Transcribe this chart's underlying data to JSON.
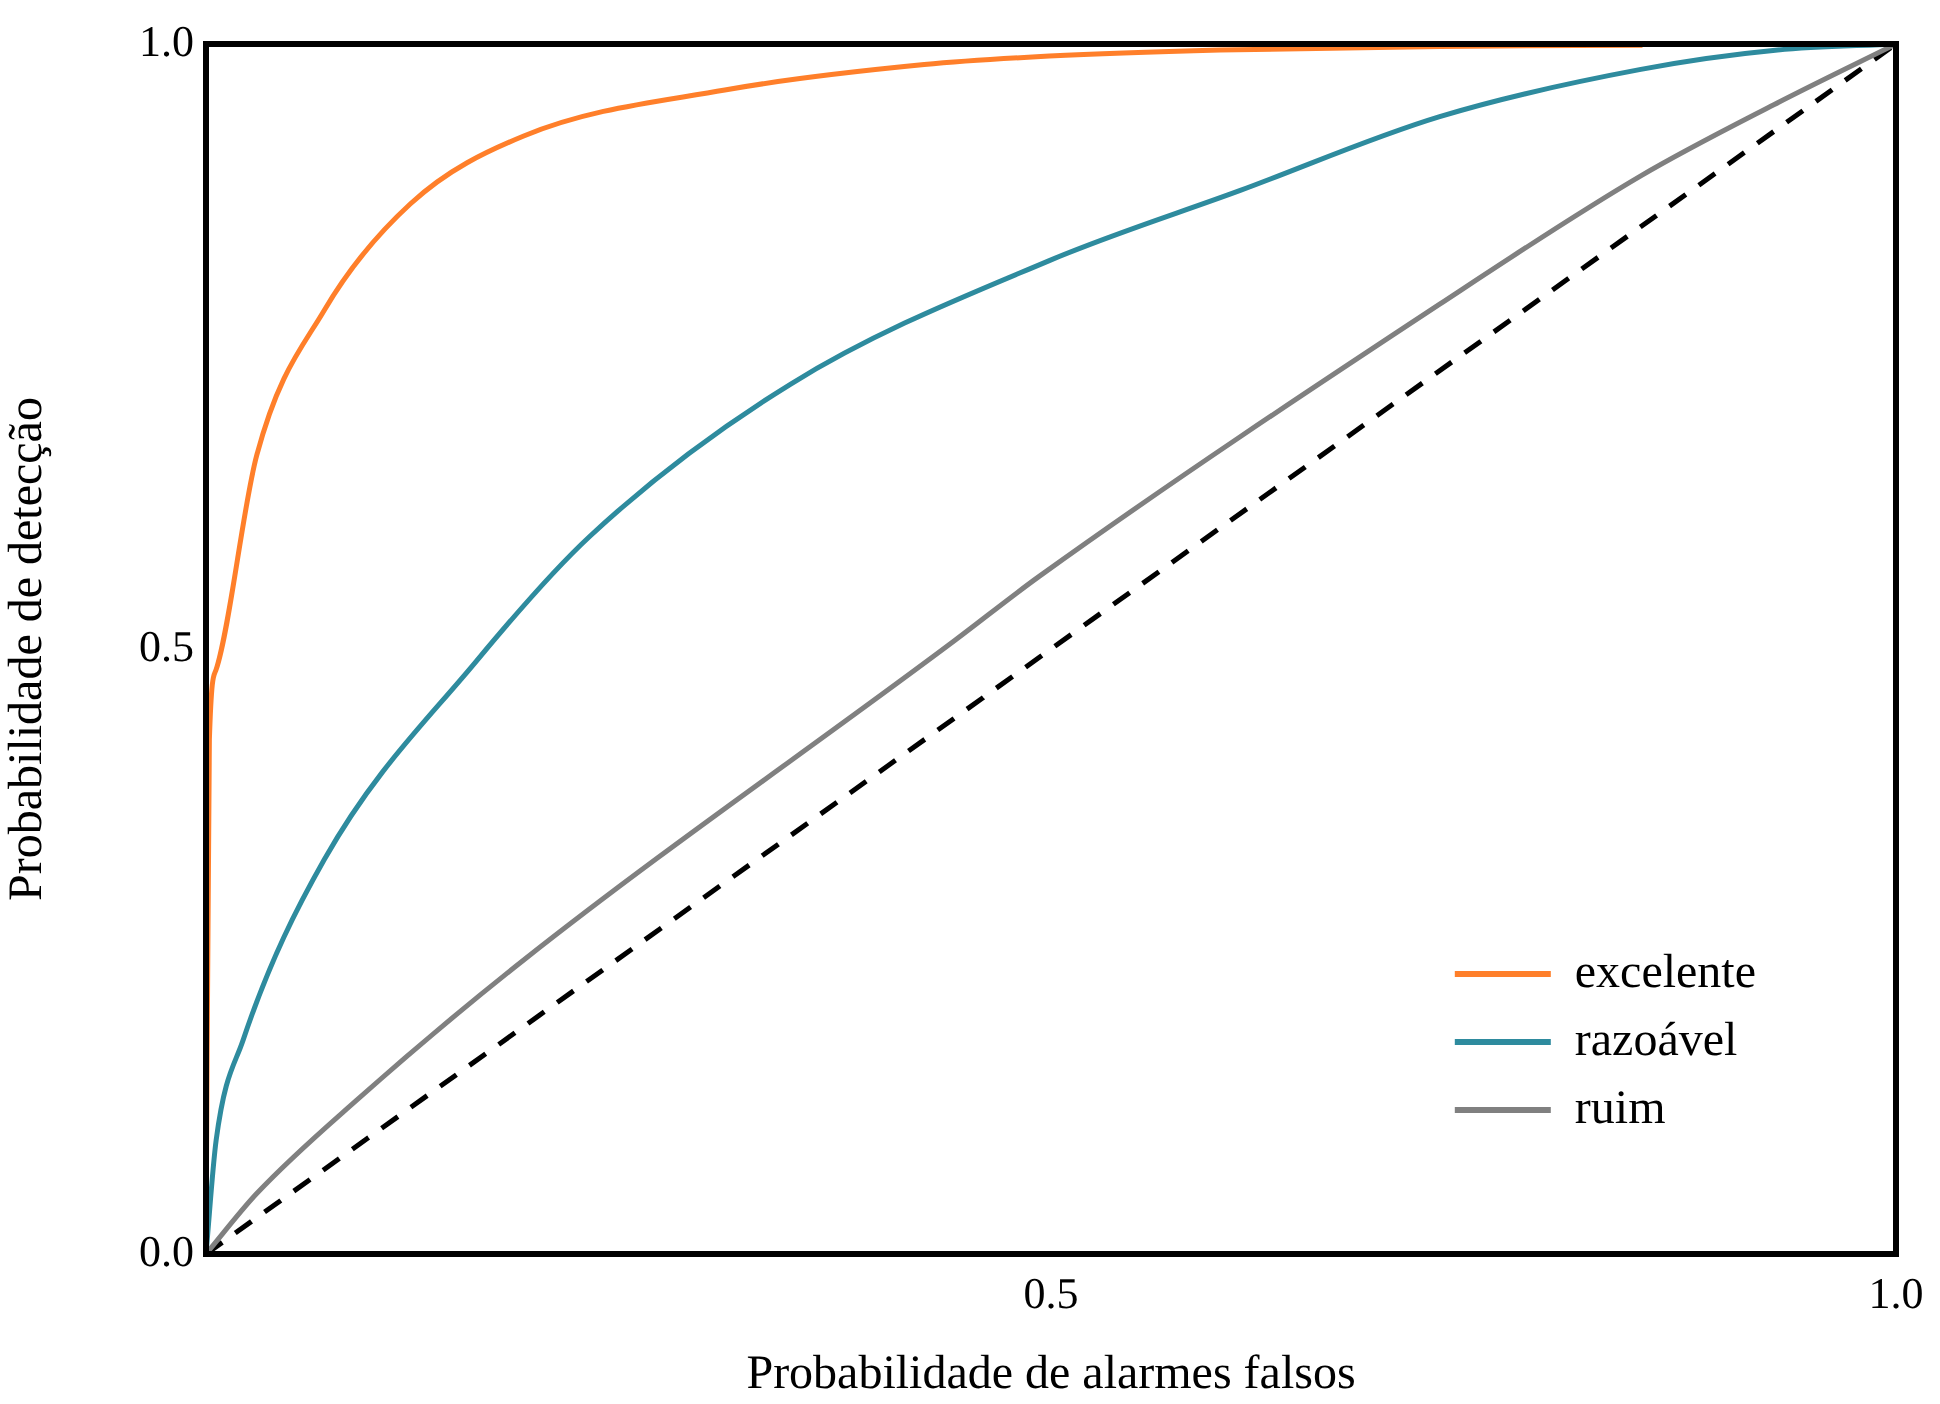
{
  "chart_data": {
    "type": "line",
    "xlabel": "Probabilidade de alarmes falsos",
    "ylabel": "Probabilidade de detecção",
    "xlim": [
      0,
      1
    ],
    "ylim": [
      0,
      1
    ],
    "xticks": [
      {
        "value": 0,
        "label": null
      },
      {
        "value": 0.5,
        "label": "0.5"
      },
      {
        "value": 1,
        "label": "1.0"
      }
    ],
    "yticks": [
      {
        "value": 0,
        "label": "0.0"
      },
      {
        "value": 0.5,
        "label": "0.5"
      },
      {
        "value": 1,
        "label": "1.0"
      }
    ],
    "grid": false,
    "legend": "bottom right",
    "marker": "none",
    "series": [
      {
        "name": "excelente",
        "color": "#ff7f2a",
        "x": [
          0,
          0.002,
          0.006,
          0.03,
          0.07,
          0.121,
          0.188,
          0.307,
          0.425,
          0.499,
          0.6,
          0.73,
          0.85
        ],
        "values": [
          0,
          0.425,
          0.483,
          0.66,
          0.78,
          0.868,
          0.924,
          0.962,
          0.983,
          0.99,
          0.995,
          0.998,
          0.999
        ]
      },
      {
        "name": "razoável",
        "color": "#2e8b9e",
        "x": [
          0,
          0.006,
          0.022,
          0.07,
          0.16,
          0.227,
          0.346,
          0.499,
          0.612,
          0.73,
          0.849,
          0.93,
          1
        ],
        "values": [
          0,
          0.094,
          0.177,
          0.326,
          0.49,
          0.593,
          0.719,
          0.821,
          0.879,
          0.94,
          0.979,
          0.995,
          1
        ]
      },
      {
        "name": "ruim",
        "color": "#808080",
        "x": [
          0,
          0.03,
          0.089,
          0.188,
          0.443,
          0.493,
          0.73,
          0.849,
          0.928,
          1
        ],
        "values": [
          0,
          0.05,
          0.127,
          0.243,
          0.507,
          0.56,
          0.785,
          0.891,
          0.95,
          1
        ]
      },
      {
        "color": "#000000",
        "line_style": "dashed",
        "x": [
          0,
          1
        ],
        "values": [
          0,
          1
        ]
      }
    ]
  }
}
